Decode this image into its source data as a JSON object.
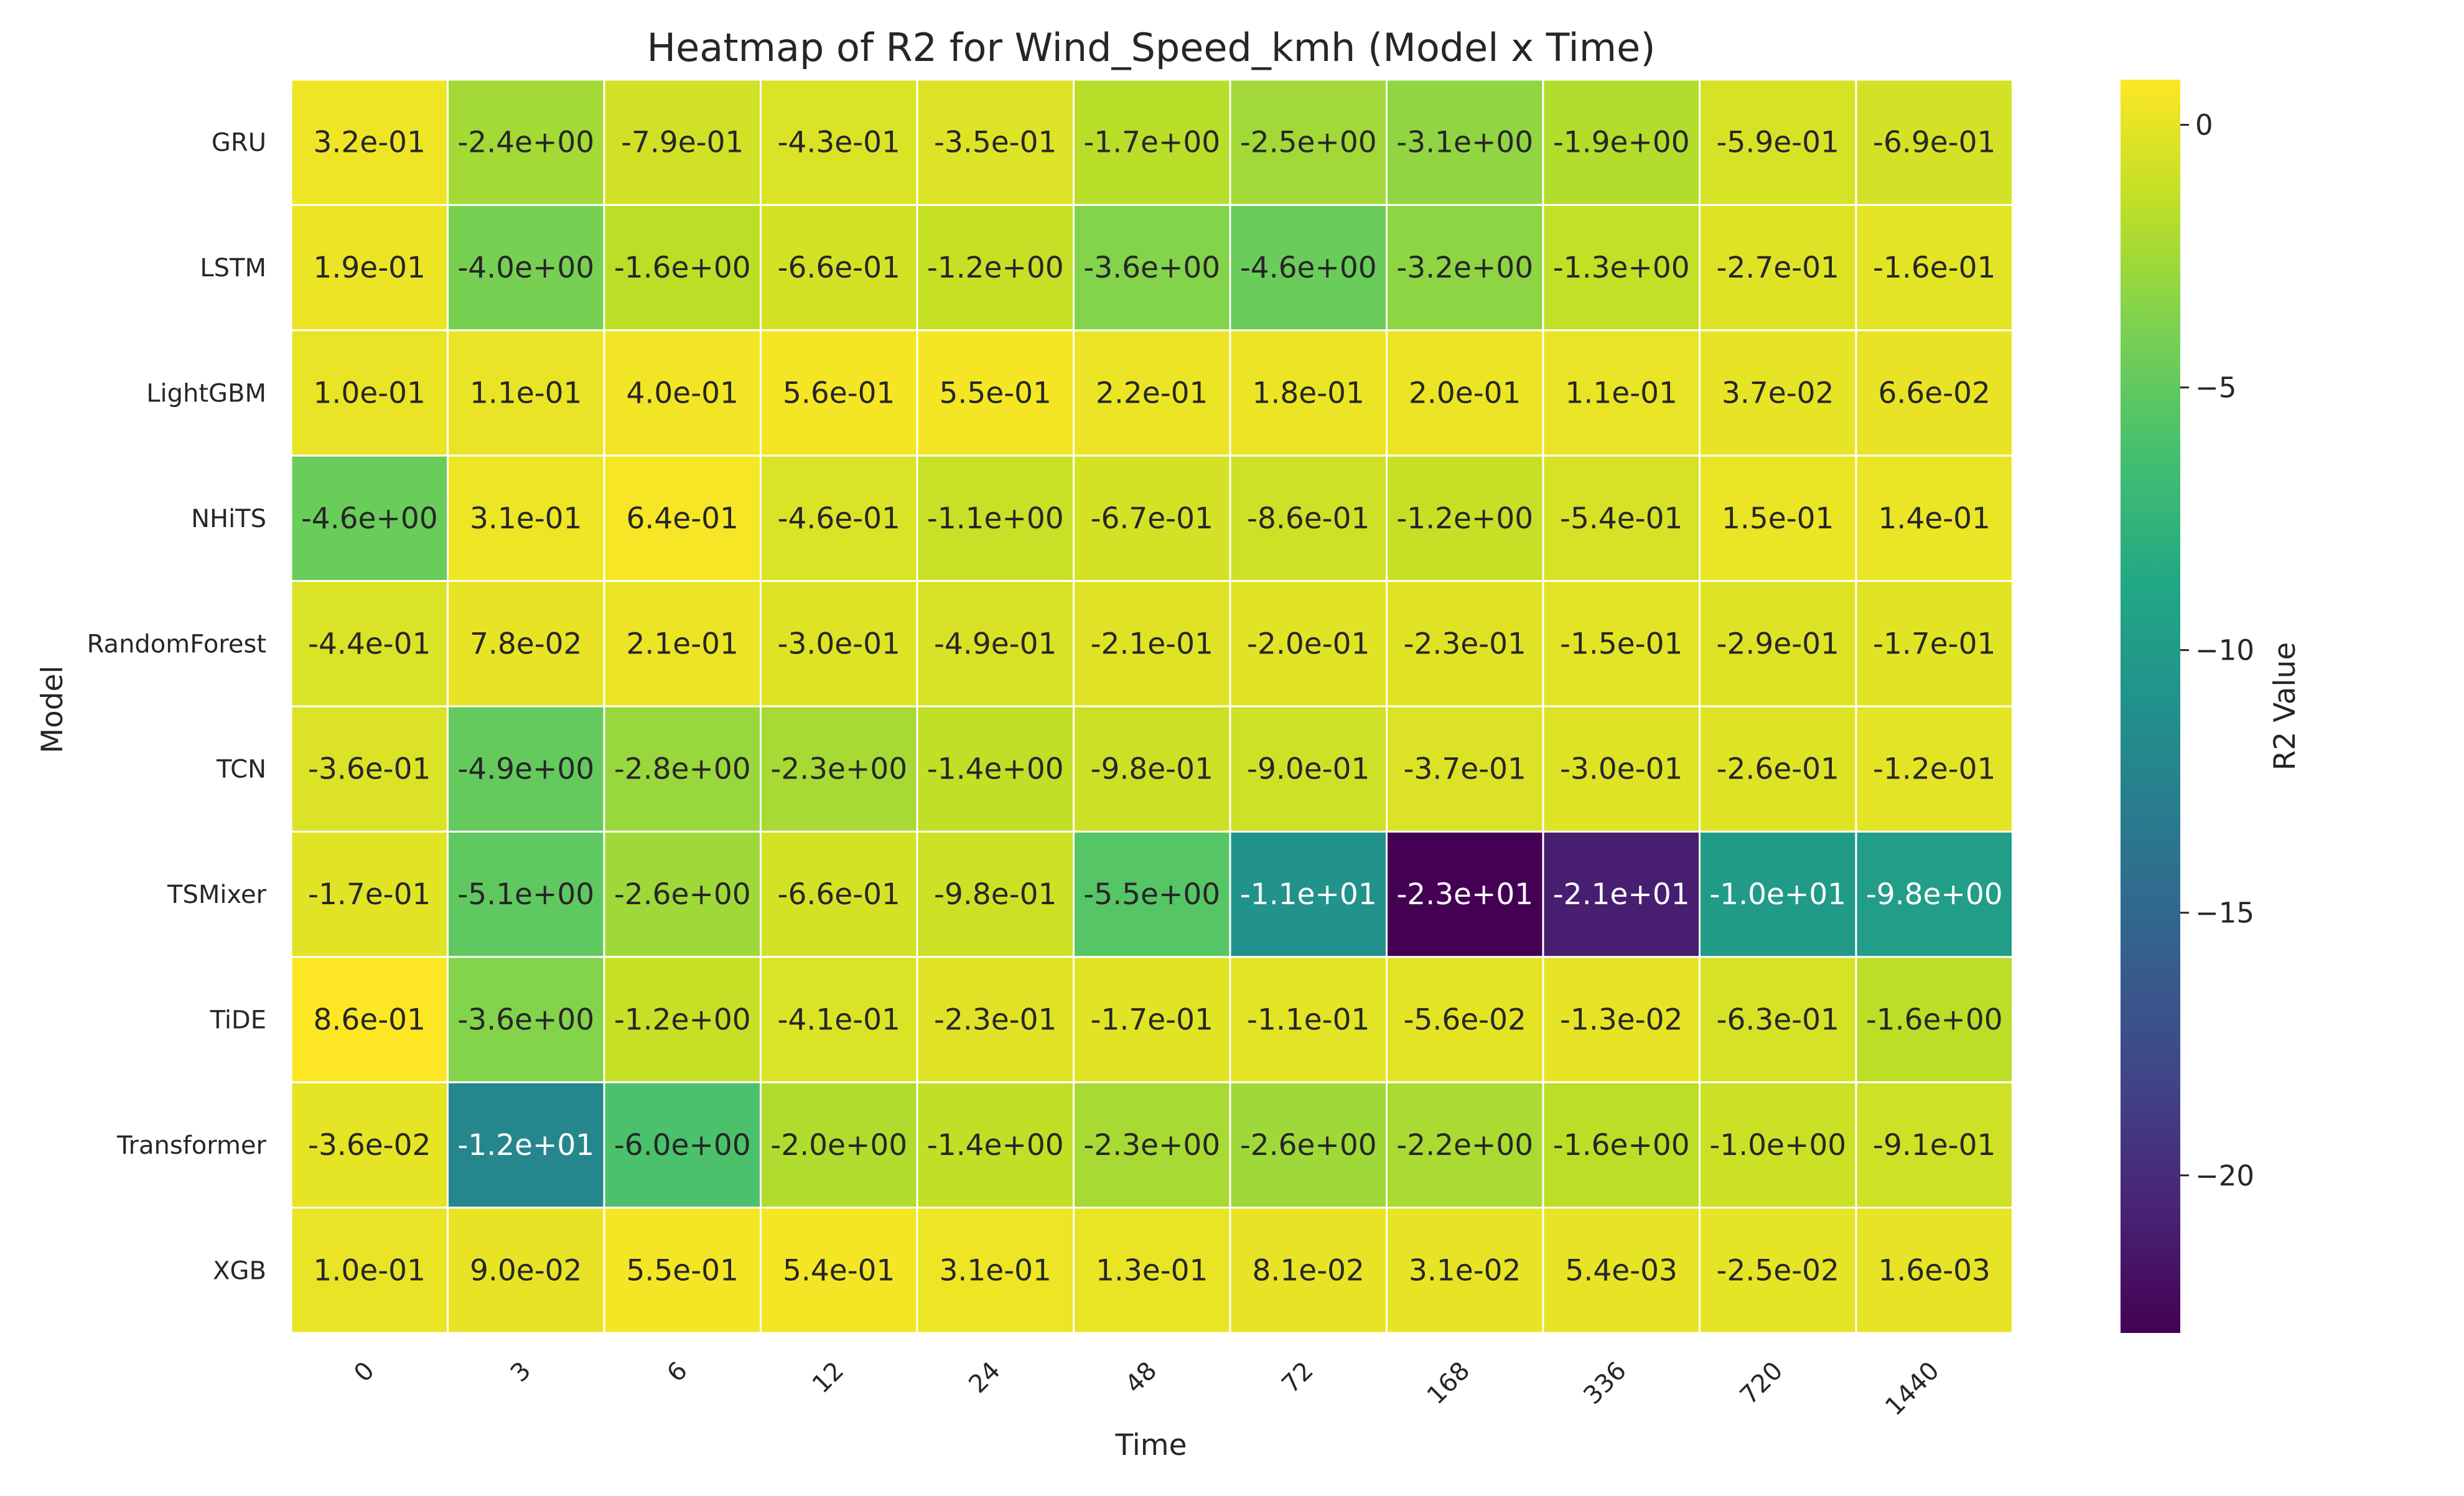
{
  "chart_data": {
    "type": "heatmap",
    "title": "Heatmap of R2 for Wind_Speed_kmh (Model x Time)",
    "xlabel": "Time",
    "ylabel": "Model",
    "colorbar_label": "R2 Value",
    "colormap": "viridis",
    "vmin": -23,
    "vmax": 0.86,
    "colorbar_ticks": [
      0,
      -5,
      -10,
      -15,
      -20
    ],
    "colorbar_tick_labels": [
      "0",
      "−5",
      "−10",
      "−15",
      "−20"
    ],
    "x_categories": [
      "0",
      "3",
      "6",
      "12",
      "24",
      "48",
      "72",
      "168",
      "336",
      "720",
      "1440"
    ],
    "y_categories": [
      "GRU",
      "LSTM",
      "LightGBM",
      "NHiTS",
      "RandomForest",
      "TCN",
      "TSMixer",
      "TiDE",
      "Transformer",
      "XGB"
    ],
    "values": [
      [
        0.32,
        -2.4,
        -0.79,
        -0.43,
        -0.35,
        -1.7,
        -2.5,
        -3.1,
        -1.9,
        -0.59,
        -0.69
      ],
      [
        0.19,
        -4.0,
        -1.6,
        -0.66,
        -1.2,
        -3.6,
        -4.6,
        -3.2,
        -1.3,
        -0.27,
        -0.16
      ],
      [
        0.1,
        0.11,
        0.4,
        0.56,
        0.55,
        0.22,
        0.18,
        0.2,
        0.11,
        0.037,
        0.066
      ],
      [
        -4.6,
        0.31,
        0.64,
        -0.46,
        -1.1,
        -0.67,
        -0.86,
        -1.2,
        -0.54,
        0.15,
        0.14
      ],
      [
        -0.44,
        0.078,
        0.21,
        -0.3,
        -0.49,
        -0.21,
        -0.2,
        -0.23,
        -0.15,
        -0.29,
        -0.17
      ],
      [
        -0.36,
        -4.9,
        -2.8,
        -2.3,
        -1.4,
        -0.98,
        -0.9,
        -0.37,
        -0.3,
        -0.26,
        -0.12
      ],
      [
        -0.17,
        -5.1,
        -2.6,
        -0.66,
        -0.98,
        -5.5,
        -11,
        -23,
        -21,
        -10,
        -9.8
      ],
      [
        0.86,
        -3.6,
        -1.2,
        -0.41,
        -0.23,
        -0.17,
        -0.11,
        -0.056,
        -0.013,
        -0.63,
        -1.6
      ],
      [
        -0.036,
        -12,
        -6.0,
        -2.0,
        -1.4,
        -2.3,
        -2.6,
        -2.2,
        -1.6,
        -1.0,
        -0.91
      ],
      [
        0.1,
        0.09,
        0.55,
        0.54,
        0.31,
        0.13,
        0.081,
        0.031,
        0.0054,
        -0.025,
        0.0016
      ]
    ],
    "labels": [
      [
        "3.2e-01",
        "-2.4e+00",
        "-7.9e-01",
        "-4.3e-01",
        "-3.5e-01",
        "-1.7e+00",
        "-2.5e+00",
        "-3.1e+00",
        "-1.9e+00",
        "-5.9e-01",
        "-6.9e-01"
      ],
      [
        "1.9e-01",
        "-4.0e+00",
        "-1.6e+00",
        "-6.6e-01",
        "-1.2e+00",
        "-3.6e+00",
        "-4.6e+00",
        "-3.2e+00",
        "-1.3e+00",
        "-2.7e-01",
        "-1.6e-01"
      ],
      [
        "1.0e-01",
        "1.1e-01",
        "4.0e-01",
        "5.6e-01",
        "5.5e-01",
        "2.2e-01",
        "1.8e-01",
        "2.0e-01",
        "1.1e-01",
        "3.7e-02",
        "6.6e-02"
      ],
      [
        "-4.6e+00",
        "3.1e-01",
        "6.4e-01",
        "-4.6e-01",
        "-1.1e+00",
        "-6.7e-01",
        "-8.6e-01",
        "-1.2e+00",
        "-5.4e-01",
        "1.5e-01",
        "1.4e-01"
      ],
      [
        "-4.4e-01",
        "7.8e-02",
        "2.1e-01",
        "-3.0e-01",
        "-4.9e-01",
        "-2.1e-01",
        "-2.0e-01",
        "-2.3e-01",
        "-1.5e-01",
        "-2.9e-01",
        "-1.7e-01"
      ],
      [
        "-3.6e-01",
        "-4.9e+00",
        "-2.8e+00",
        "-2.3e+00",
        "-1.4e+00",
        "-9.8e-01",
        "-9.0e-01",
        "-3.7e-01",
        "-3.0e-01",
        "-2.6e-01",
        "-1.2e-01"
      ],
      [
        "-1.7e-01",
        "-5.1e+00",
        "-2.6e+00",
        "-6.6e-01",
        "-9.8e-01",
        "-5.5e+00",
        "-1.1e+01",
        "-2.3e+01",
        "-2.1e+01",
        "-1.0e+01",
        "-9.8e+00"
      ],
      [
        "8.6e-01",
        "-3.6e+00",
        "-1.2e+00",
        "-4.1e-01",
        "-2.3e-01",
        "-1.7e-01",
        "-1.1e-01",
        "-5.6e-02",
        "-1.3e-02",
        "-6.3e-01",
        "-1.6e+00"
      ],
      [
        "-3.6e-02",
        "-1.2e+01",
        "-6.0e+00",
        "-2.0e+00",
        "-1.4e+00",
        "-2.3e+00",
        "-2.6e+00",
        "-2.2e+00",
        "-1.6e+00",
        "-1.0e+00",
        "-9.1e-01"
      ],
      [
        "1.0e-01",
        "9.0e-02",
        "5.5e-01",
        "5.4e-01",
        "3.1e-01",
        "1.3e-01",
        "8.1e-02",
        "3.1e-02",
        "5.4e-03",
        "-2.5e-02",
        "1.6e-03"
      ]
    ]
  }
}
